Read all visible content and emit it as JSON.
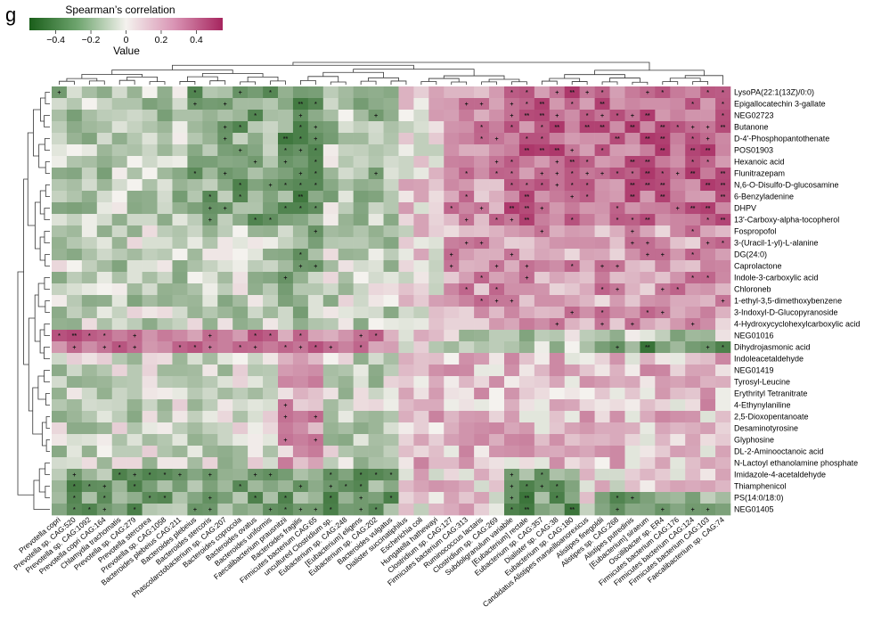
{
  "panel_label": "g",
  "legend": {
    "title": "Spearman’s correlation",
    "ticks": [
      "−0.4",
      "−0.2",
      "0",
      "0.2",
      "0.4"
    ],
    "tick_values": [
      -0.4,
      -0.2,
      0,
      0.2,
      0.4
    ],
    "range": [
      -0.55,
      0.55
    ],
    "caption": "Value",
    "colors": [
      "#1a5e1a",
      "#f4f2ee",
      "#a6255e"
    ]
  },
  "chart_data": {
    "type": "heatmap",
    "title": "Spearman’s correlation",
    "colorbar_label": "Value",
    "value_range": [
      -0.55,
      0.55
    ],
    "significance_marks": [
      "+",
      "*",
      "**"
    ],
    "rows": [
      "LysoPA(22:1(13Z)/0:0)",
      "Epigallocatechin 3-gallate",
      "NEG02723",
      "Butanone",
      "D-4'-Phosphopantothenate",
      "POS01903",
      "Hexanoic acid",
      "Flunitrazepam",
      "N,6-O-Disulfo-D-glucosamine",
      "6-Benzyladenine",
      "DHPV",
      "13'-Carboxy-alpha-tocopherol",
      "Fospropofol",
      "3-(Uracil-1-yl)-L-alanine",
      "DG(24:0)",
      "Caprolactone",
      "Indole-3-carboxylic acid",
      "Chloroneb",
      "1-ethyl-3,5-dimethoxybenzene",
      "3-Indoxyl-D-Glucopyranoside",
      "4-Hydroxycyclohexylcarboxylic acid",
      "NEG01016",
      "Dihydrojasmonic acid",
      "Indoleacetaldehyde",
      "NEG01419",
      "Tyrosyl-Leucine",
      "Erythrityl Tetranitrate",
      "4-Ethynylaniline",
      "2,5-Dioxopentanoate",
      "Desaminotyrosine",
      "Glyphosine",
      "DL-2-Aminooctanoic acid",
      "N-Lactoyl ethanolamine phosphate",
      "Imidazole-4-acetaldehyde",
      "Thiamphenicol",
      "PS(14:0/18:0)",
      "NEG01405"
    ],
    "columns": [
      "Prevotella copri",
      "Prevotella sp. CAG:520",
      "Prevotella sp. CAG:1092",
      "Prevotella copri CAG:164",
      "Chlamydia trachomatis",
      "Prevotella sp. CAG:279",
      "Prevotella stercorea",
      "Prevotella sp. CAG:1058",
      "Bacteroides plebeius CAG:211",
      "Bacteroides plebeius",
      "Bacteroides stercoris",
      "Phascolarctobacterium sp. CAG:207",
      "Bacteroides coprocola",
      "Bacteroides ovatus",
      "Bacteroides uniformis",
      "Faecalibacterium prausnitzii",
      "Bacteroides fragilis",
      "Firmicutes bacterium CAG:65",
      "uncultured Clostridium sp.",
      "Eubacterium sp. CAG:248",
      "[Eubacterium] eligens",
      "Eubacterium sp. CAG:202",
      "Bacteroides vulgatus",
      "Dialister succinatiphilus",
      "Escherichia coli",
      "Hungatella hathewayi",
      "Clostridium sp. CAG:127",
      "Firmicutes bacterium CAG:313",
      "Ruminococcus lactaris",
      "Clostridium sp. CAG:269",
      "Subdoligranulum variabile",
      "[Eubacterium] rectale",
      "Eubacterium sp. CAG:357",
      "Dialister sp. CAG:38",
      "Eubacterium sp. CAG:180",
      "Candidatus Alistipes marseilloanorexicus",
      "Alistipes finegoldii",
      "Alistipes sp. CAG:268",
      "Alistipes putredinis",
      "[Eubacterium] siraeum",
      "Oscillibacter sp. ER4",
      "Firmicutes bacterium CAG:176",
      "Firmicutes bacterium CAG:124",
      "Firmicutes bacterium CAG:103",
      "Faecalibacterium sp. CAG:74"
    ],
    "notes": "Cell values estimated from colour (range about -0.55 to 0.55); generated row by row from the observed pattern."
  }
}
